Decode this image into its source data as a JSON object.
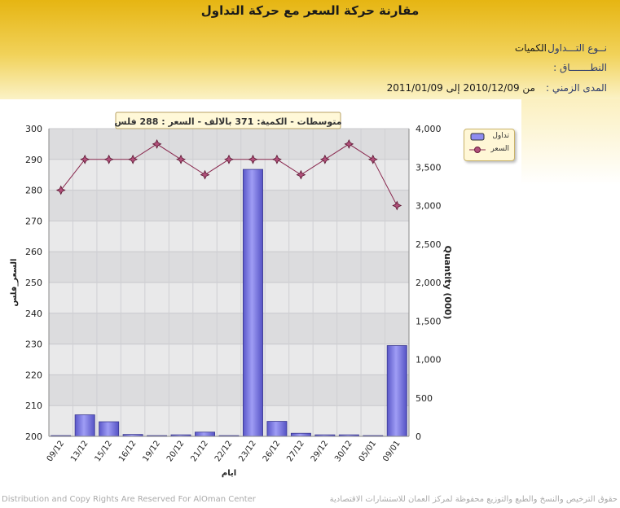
{
  "page": {
    "title": "مقارنة حركة السعر مع حركة التداول",
    "info": {
      "type_label": "نــوع التـــداول :",
      "type_value": "الكميات",
      "range_label": "النطـــــــاق :",
      "period_label": "المدى الزمني :",
      "period_value": "من 2010/12/09 إلى 2011/01/09"
    },
    "footer_left": "Distribution and Copy Rights Are Reserved For AlOman Center",
    "footer_right": "حقوق الترخيص والنسخ والطبع والتوزيع محفوظة لمركز العمان للاستشارات الاقتصادية"
  },
  "chart_data": {
    "type": "bar+line",
    "annotation": "متوسطات - الكمية: 371 بالالف  - السعر : 288 فلس",
    "xlabel": "ايام",
    "ylabel_left": "السعر_فلس",
    "ylabel_right": "Quantity (000)",
    "categories": [
      "09/12",
      "13/12",
      "15/12",
      "16/12",
      "19/12",
      "20/12",
      "21/12",
      "22/12",
      "23/12",
      "26/12",
      "27/12",
      "29/12",
      "30/12",
      "05/01",
      "09/01"
    ],
    "yleft": {
      "min": 200,
      "max": 300,
      "step": 10,
      "ticks": [
        "200",
        "210",
        "220",
        "230",
        "240",
        "250",
        "260",
        "270",
        "280",
        "290",
        "300"
      ]
    },
    "yright": {
      "min": 0,
      "max": 4000,
      "step": 500,
      "ticks": [
        "0",
        "500",
        "1,000",
        "1,500",
        "2,000",
        "2,500",
        "3,000",
        "3,500",
        "4,000"
      ]
    },
    "series": [
      {
        "name": "تداول",
        "type": "bar",
        "axis": "right",
        "color": "#7b78e6",
        "values": [
          10,
          280,
          190,
          25,
          10,
          20,
          55,
          10,
          3470,
          195,
          40,
          20,
          20,
          10,
          1180
        ]
      },
      {
        "name": "السعر",
        "type": "line",
        "axis": "left",
        "color": "#8a2a50",
        "values": [
          280,
          290,
          290,
          290,
          295,
          290,
          285,
          290,
          290,
          290,
          285,
          290,
          295,
          290,
          275
        ]
      }
    ],
    "grid": true,
    "legend_position": "right"
  }
}
